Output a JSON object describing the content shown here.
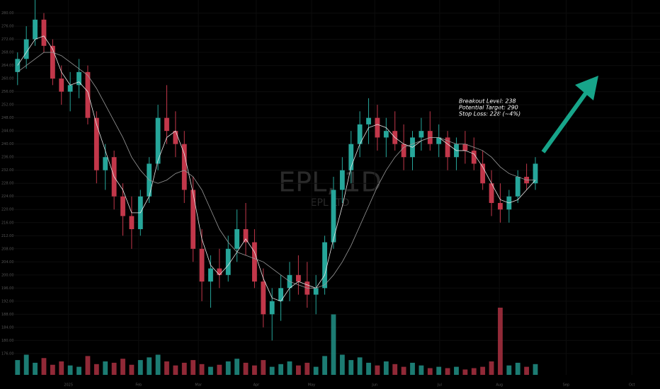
{
  "chart_data": {
    "type": "candlestick",
    "watermark": "EPL, 1D",
    "watermark_sub": "EPL LTD",
    "annotations": [
      "Breakout Level: 238",
      "Potential Target: 290",
      "Stop Loss: 228 (~4%)"
    ],
    "up_color": "#26a69a",
    "down_color": "#c2374a",
    "arrow_color": "#17a58a",
    "xlim": [
      -2,
      73.2
    ],
    "xticks": [
      {
        "value": 5.8,
        "label": "2025"
      },
      {
        "value": 13.8,
        "label": "Feb"
      },
      {
        "value": 20.6,
        "label": "Mar"
      },
      {
        "value": 27.2,
        "label": "Apr"
      },
      {
        "value": 33.5,
        "label": "May"
      },
      {
        "value": 40.7,
        "label": "Jun"
      },
      {
        "value": 48.1,
        "label": "Jul"
      },
      {
        "value": 54.9,
        "label": "Aug"
      },
      {
        "value": 62.5,
        "label": "Sep"
      },
      {
        "value": 70,
        "label": "Oct"
      }
    ],
    "ylim": [
      169.5,
      284
    ],
    "yticks": [
      {
        "value": 176,
        "label": "176.00"
      },
      {
        "value": 180,
        "label": "180.00"
      },
      {
        "value": 184,
        "label": "184.00"
      },
      {
        "value": 188,
        "label": "188.00"
      },
      {
        "value": 192,
        "label": "192.00"
      },
      {
        "value": 196,
        "label": "196.00"
      },
      {
        "value": 200,
        "label": "200.00"
      },
      {
        "value": 204,
        "label": "204.00"
      },
      {
        "value": 208,
        "label": "208.00"
      },
      {
        "value": 212,
        "label": "212.00"
      },
      {
        "value": 216,
        "label": "216.00"
      },
      {
        "value": 220,
        "label": "220.00"
      },
      {
        "value": 224,
        "label": "224.00"
      },
      {
        "value": 228,
        "label": "228.00"
      },
      {
        "value": 232,
        "label": "232.00"
      },
      {
        "value": 236,
        "label": "236.00"
      },
      {
        "value": 240,
        "label": "240.00"
      },
      {
        "value": 244,
        "label": "244.00"
      },
      {
        "value": 248,
        "label": "248.00"
      },
      {
        "value": 252,
        "label": "252.00"
      },
      {
        "value": 256,
        "label": "256.00"
      },
      {
        "value": 260,
        "label": "260.00"
      },
      {
        "value": 264,
        "label": "264.00"
      },
      {
        "value": 268,
        "label": "268.00"
      },
      {
        "value": 272,
        "label": "272.00"
      },
      {
        "value": 276,
        "label": "276.00"
      },
      {
        "value": 280,
        "label": "280.00"
      }
    ],
    "open": [
      262,
      266,
      272,
      278,
      270,
      260,
      256,
      258,
      262,
      248,
      232,
      236,
      224,
      218,
      214,
      224,
      234,
      248,
      244,
      240,
      226,
      208,
      198,
      202,
      200,
      208,
      214,
      210,
      198,
      188,
      192,
      196,
      200,
      198,
      194,
      196,
      210,
      226,
      232,
      240,
      246,
      248,
      242,
      244,
      240,
      236,
      242,
      244,
      240,
      242,
      236,
      240,
      238,
      234,
      228,
      222,
      220,
      224,
      230,
      228
    ],
    "high": [
      268,
      276,
      284,
      280,
      272,
      264,
      262,
      266,
      264,
      250,
      240,
      238,
      228,
      224,
      226,
      236,
      252,
      258,
      250,
      244,
      230,
      214,
      206,
      208,
      212,
      220,
      222,
      214,
      202,
      196,
      200,
      204,
      206,
      204,
      200,
      212,
      230,
      236,
      244,
      250,
      254,
      252,
      248,
      250,
      246,
      244,
      248,
      250,
      246,
      244,
      242,
      244,
      242,
      238,
      232,
      228,
      226,
      232,
      234,
      236
    ],
    "low": [
      258,
      263,
      270,
      268,
      258,
      252,
      250,
      254,
      246,
      228,
      226,
      220,
      212,
      208,
      212,
      222,
      232,
      240,
      236,
      222,
      204,
      192,
      190,
      196,
      198,
      204,
      206,
      196,
      184,
      180,
      186,
      192,
      194,
      190,
      188,
      194,
      208,
      222,
      228,
      236,
      240,
      238,
      236,
      238,
      232,
      232,
      238,
      238,
      236,
      232,
      232,
      234,
      232,
      226,
      218,
      216,
      216,
      222,
      226,
      226
    ],
    "close": [
      266,
      272,
      278,
      270,
      260,
      256,
      258,
      262,
      248,
      232,
      236,
      224,
      218,
      214,
      224,
      234,
      248,
      244,
      240,
      226,
      208,
      198,
      202,
      200,
      208,
      214,
      210,
      198,
      188,
      192,
      196,
      200,
      198,
      194,
      196,
      210,
      226,
      232,
      240,
      246,
      248,
      242,
      244,
      240,
      236,
      242,
      244,
      240,
      242,
      236,
      240,
      238,
      234,
      228,
      222,
      220,
      224,
      230,
      228,
      234
    ],
    "volume": [
      22,
      30,
      18,
      25,
      15,
      20,
      14,
      12,
      28,
      16,
      20,
      18,
      24,
      15,
      22,
      26,
      30,
      20,
      14,
      18,
      22,
      16,
      12,
      15,
      20,
      24,
      18,
      14,
      22,
      12,
      16,
      20,
      14,
      18,
      12,
      28,
      90,
      30,
      22,
      26,
      18,
      14,
      20,
      16,
      12,
      18,
      14,
      10,
      12,
      10,
      12,
      8,
      10,
      12,
      20,
      100,
      14,
      18,
      12,
      16
    ],
    "volume_lim": [
      0,
      100
    ],
    "series": [
      {
        "name": "MA fast",
        "color": "#e8e8e8",
        "values": [
          264,
          268,
          272,
          273,
          269,
          262,
          258,
          259,
          256,
          246,
          238,
          230,
          226,
          219,
          219,
          224,
          235,
          242,
          244,
          237,
          225,
          211,
          203,
          200,
          203,
          207,
          211,
          207,
          199,
          193,
          192,
          196,
          198,
          197,
          196,
          200,
          211,
          221,
          233,
          240,
          245,
          246,
          245,
          242,
          240,
          239,
          241,
          242,
          242,
          240,
          238,
          238,
          237,
          233,
          228,
          223,
          222,
          223,
          226,
          229
        ]
      },
      {
        "name": "MA slow",
        "color": "#9a9a9a",
        "values": [
          262,
          264,
          266,
          268,
          268,
          267,
          265,
          263,
          261,
          257,
          252,
          247,
          242,
          236,
          232,
          229,
          228,
          229,
          231,
          232,
          230,
          226,
          220,
          214,
          210,
          207,
          206,
          205,
          204,
          202,
          200,
          198,
          197,
          196,
          196,
          197,
          200,
          204,
          209,
          215,
          221,
          227,
          232,
          236,
          239,
          240,
          241,
          242,
          242,
          241,
          240,
          240,
          239,
          238,
          236,
          233,
          231,
          230,
          229,
          229
        ]
      }
    ]
  }
}
